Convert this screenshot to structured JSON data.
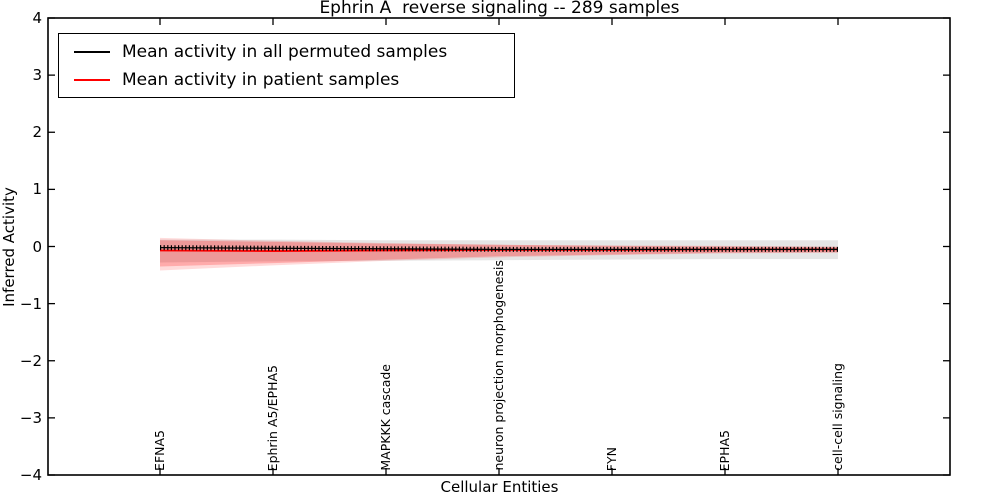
{
  "chart_data": {
    "type": "line",
    "title": "Ephrin A  reverse signaling -- 289 samples",
    "xlabel": "Cellular Entities",
    "ylabel": "Inferred Activity",
    "ylim": [
      -4,
      4
    ],
    "yticks": [
      4,
      3,
      2,
      1,
      0,
      -1,
      -2,
      -3,
      -4
    ],
    "ytick_labels": [
      "4",
      "3",
      "2",
      "1",
      "0",
      "−1",
      "−2",
      "−3",
      "−4"
    ],
    "grid": false,
    "legend_position": "upper left",
    "frame_color": "#000000",
    "categories": [
      "EFNA5",
      "Ephrin A5/EPHA5",
      "MAPKKK cascade",
      "neuron projection morphogenesis",
      "FYN",
      "EPHA5",
      "cell-cell signaling"
    ],
    "series": [
      {
        "name": "Mean activity in all permuted samples",
        "color": "#000000",
        "marker": "+",
        "values": [
          -0.02,
          -0.03,
          -0.04,
          -0.05,
          -0.05,
          -0.05,
          -0.05
        ]
      },
      {
        "name": "Mean activity in patient samples",
        "color": "#ff0000",
        "marker": "none",
        "values": [
          -0.07,
          -0.08,
          -0.07,
          -0.06,
          -0.06,
          -0.05,
          -0.05
        ]
      }
    ],
    "bands": [
      {
        "name": "permuted-samples-std-band",
        "color": "#000000",
        "opacity": 0.1,
        "top": [
          0.12,
          0.12,
          0.11,
          0.11,
          0.11,
          0.11,
          0.11
        ],
        "bottom": [
          -0.28,
          -0.26,
          -0.25,
          -0.24,
          -0.23,
          -0.22,
          -0.22
        ]
      },
      {
        "name": "patient-samples-std-band-outer",
        "color": "#ff0000",
        "opacity": 0.14,
        "top": [
          0.15,
          0.1,
          0.06,
          0.03,
          0.02,
          0.01,
          0.0
        ],
        "bottom": [
          -0.42,
          -0.33,
          -0.25,
          -0.19,
          -0.15,
          -0.12,
          -0.11
        ]
      },
      {
        "name": "patient-samples-std-band",
        "color": "#ff0000",
        "opacity": 0.22,
        "top": [
          0.11,
          0.08,
          0.05,
          0.03,
          0.01,
          0.0,
          -0.01
        ],
        "bottom": [
          -0.35,
          -0.29,
          -0.23,
          -0.17,
          -0.14,
          -0.11,
          -0.1
        ]
      }
    ]
  }
}
